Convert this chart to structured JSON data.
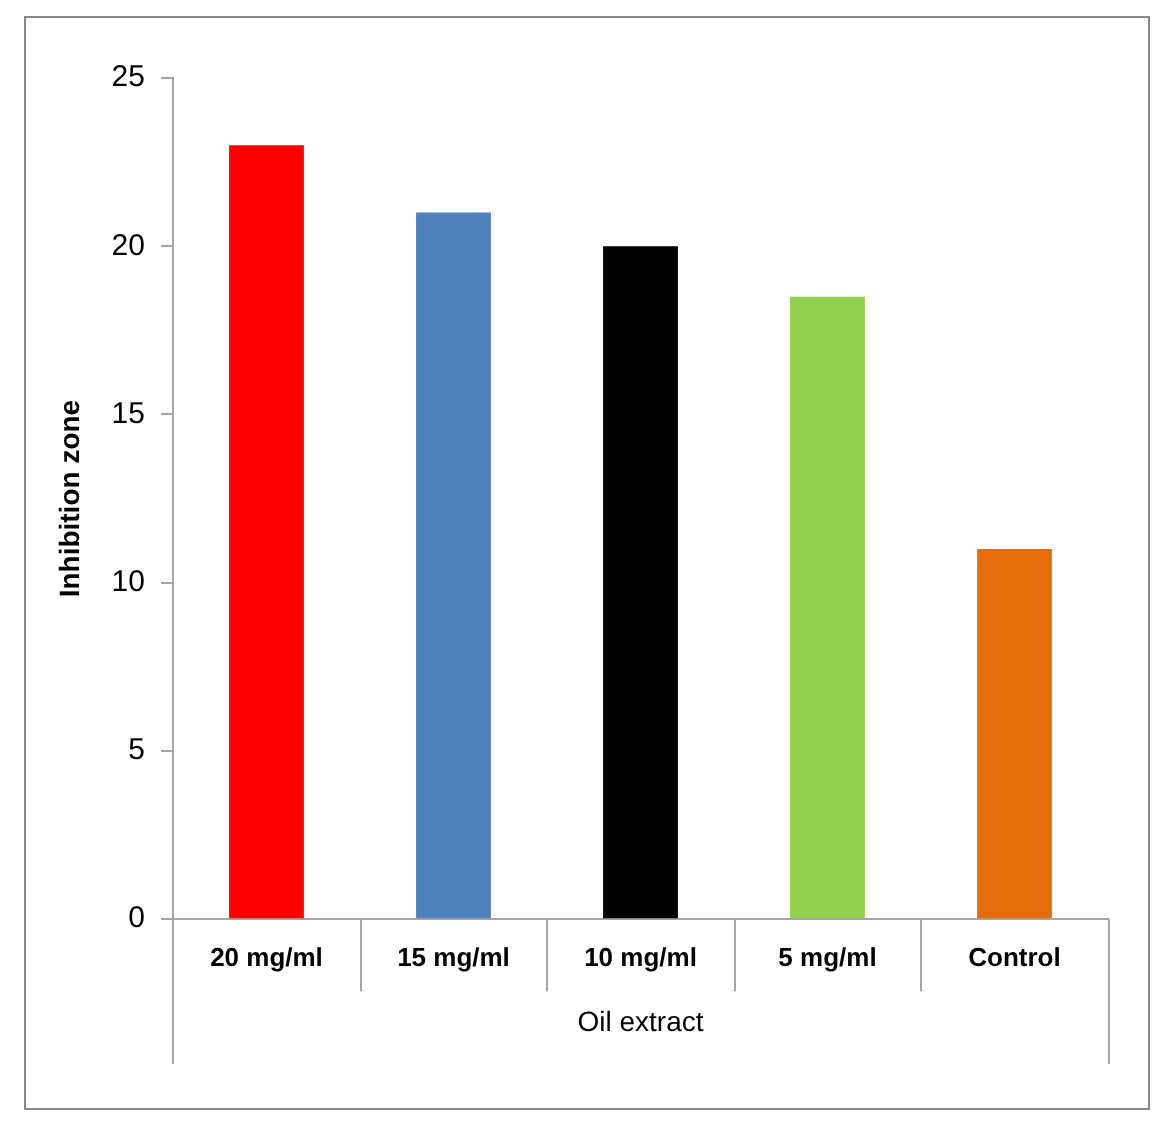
{
  "chart_data": {
    "type": "bar",
    "ylabel": "Inhibition zone",
    "xlabel": "Oil extract",
    "categories": [
      "20 mg/ml",
      "15 mg/ml",
      "10 mg/ml",
      "5 mg/ml",
      "Control"
    ],
    "values": [
      23,
      21,
      20,
      18.5,
      11
    ],
    "colors": [
      "#ff0000",
      "#4f81bd",
      "#000000",
      "#92d050",
      "#e46c0a"
    ],
    "ylim": [
      0,
      25
    ],
    "yticks": [
      0,
      5,
      10,
      15,
      20,
      25
    ],
    "grid": false,
    "legend": false
  }
}
